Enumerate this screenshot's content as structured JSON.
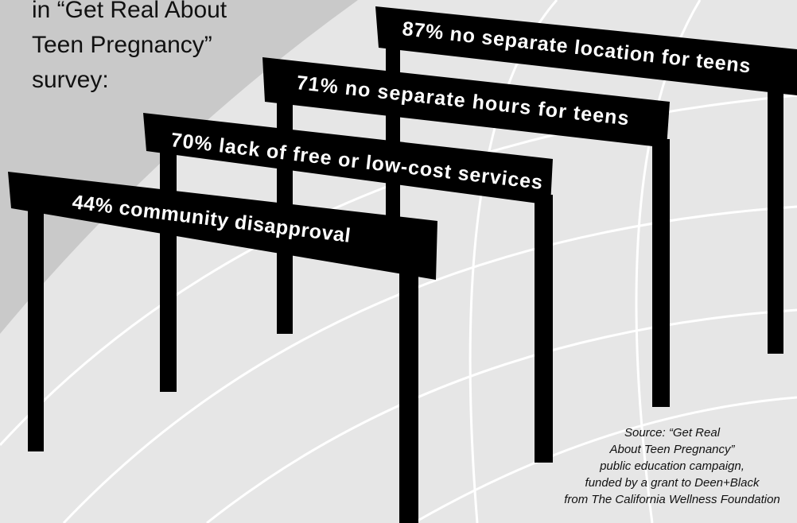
{
  "intro_lines": [
    "in “Get Real About",
    "Teen Pregnancy”",
    "survey:"
  ],
  "hurdles": [
    {
      "label": "87% no separate location for teens"
    },
    {
      "label": "71% no separate hours for teens"
    },
    {
      "label": "70% lack of free or low-cost services"
    },
    {
      "label": "44% community disapproval"
    }
  ],
  "source_lines": [
    "Source: “Get Real",
    "About Teen Pregnancy”",
    "public education campaign,",
    "funded by a grant to Deen+Black",
    "from The California Wellness Foundation"
  ]
}
